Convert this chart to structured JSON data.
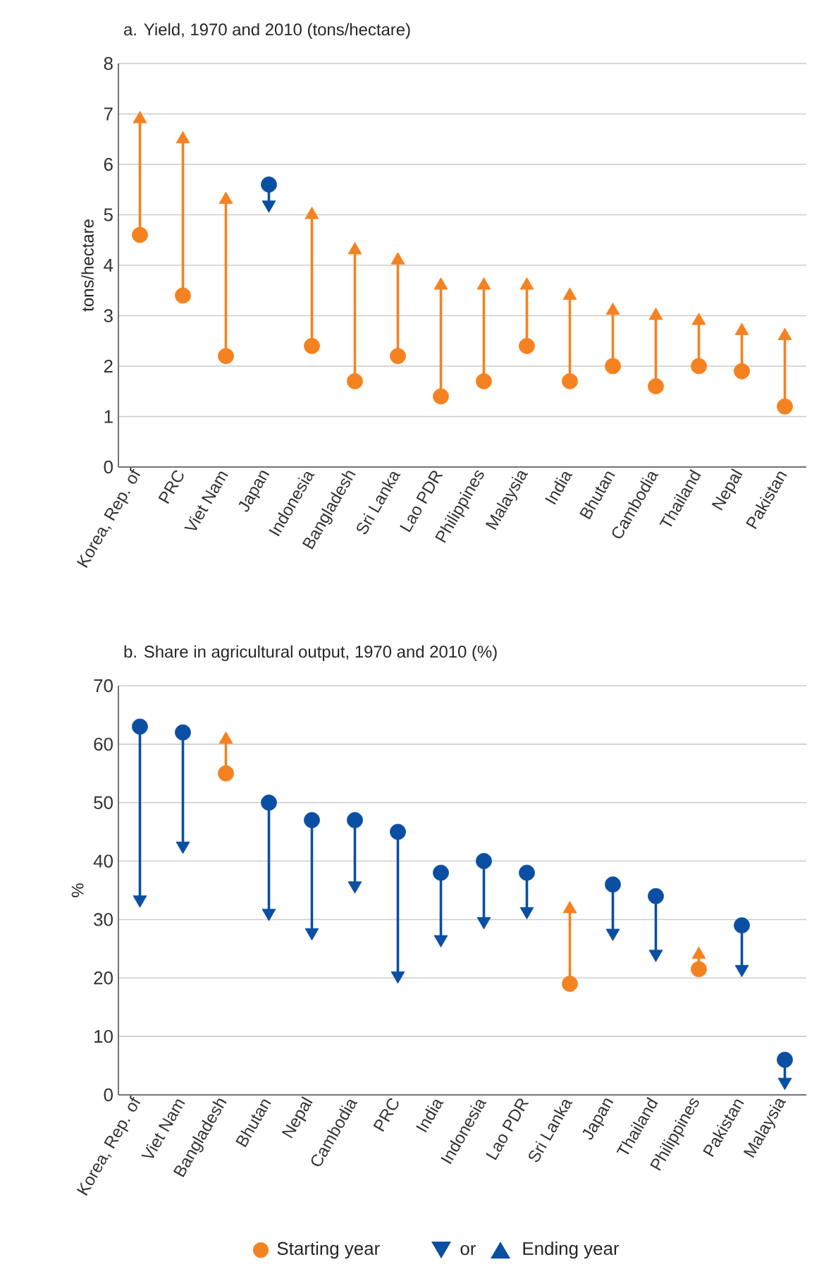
{
  "chart_data": [
    {
      "type": "scatter",
      "title": "a. Yield, 1970 and 2010 (tons/hectare)",
      "ylabel": "tons/hectare",
      "categories": [
        "Korea, Rep. of",
        "PRC",
        "Viet Nam",
        "Japan",
        "Indonesia",
        "Bangladesh",
        "Sri Lanka",
        "Lao PDR",
        "Philippines",
        "Malaysia",
        "India",
        "Bhutan",
        "Cambodia",
        "Thailand",
        "Nepal",
        "Pakistan"
      ],
      "ylim": [
        0,
        8
      ],
      "yticks": [
        0,
        1,
        2,
        3,
        4,
        5,
        6,
        7,
        8
      ],
      "grid": "y",
      "legend": false,
      "series": [
        {
          "color": "#f58220",
          "marker": "circle",
          "colors": [
            "#f58220",
            "#f58220",
            "#f58220",
            "#0a4fa3",
            "#f58220",
            "#f58220",
            "#f58220",
            "#f58220",
            "#f58220",
            "#f58220",
            "#f58220",
            "#f58220",
            "#f58220",
            "#f58220",
            "#f58220",
            "#f58220"
          ],
          "values": [
            4.6,
            3.4,
            2.2,
            5.6,
            2.4,
            1.7,
            2.2,
            1.4,
            1.7,
            2.4,
            1.7,
            2.0,
            1.6,
            2.0,
            1.9,
            1.2
          ]
        },
        {
          "color": "#0a4fa3",
          "marker": "triangle",
          "colors": [
            "#f58220",
            "#f58220",
            "#f58220",
            "#0a4fa3",
            "#f58220",
            "#f58220",
            "#f58220",
            "#f58220",
            "#f58220",
            "#f58220",
            "#f58220",
            "#f58220",
            "#f58220",
            "#f58220",
            "#f58220",
            "#f58220"
          ],
          "values": [
            6.9,
            6.5,
            5.3,
            5.2,
            5.0,
            4.3,
            4.1,
            3.6,
            3.6,
            3.6,
            3.4,
            3.1,
            3.0,
            2.9,
            2.7,
            2.6
          ]
        }
      ]
    },
    {
      "type": "scatter",
      "title": "b. Share in agricultural output, 1970 and 2010 (%)",
      "ylabel": "%",
      "categories": [
        "Korea, Rep. of",
        "Viet Nam",
        "Bangladesh",
        "Bhutan",
        "Nepal",
        "Cambodia",
        "PRC",
        "India",
        "Indonesia",
        "Lao PDR",
        "Sri Lanka",
        "Japan",
        "Thailand",
        "Philippines",
        "Pakistan",
        "Malaysia"
      ],
      "ylim": [
        0,
        70
      ],
      "yticks": [
        0,
        10,
        20,
        30,
        40,
        50,
        60,
        70
      ],
      "grid": "y",
      "legend": "bottom",
      "annotations": [
        "or"
      ],
      "series": [
        {
          "name": "Starting year",
          "color": "#f58220",
          "marker": "circle",
          "colors": [
            "#0a4fa3",
            "#0a4fa3",
            "#f58220",
            "#0a4fa3",
            "#0a4fa3",
            "#0a4fa3",
            "#0a4fa3",
            "#0a4fa3",
            "#0a4fa3",
            "#0a4fa3",
            "#f58220",
            "#0a4fa3",
            "#0a4fa3",
            "#f58220",
            "#0a4fa3",
            "#0a4fa3"
          ],
          "values": [
            63,
            62,
            55,
            50,
            47,
            47,
            45,
            38,
            40,
            38,
            19,
            36,
            34,
            21.5,
            29,
            6
          ]
        },
        {
          "name": "Ending year",
          "color": "#0a4fa3",
          "marker": "triangle",
          "colors": [
            "#0a4fa3",
            "#0a4fa3",
            "#f58220",
            "#0a4fa3",
            "#0a4fa3",
            "#0a4fa3",
            "#0a4fa3",
            "#0a4fa3",
            "#0a4fa3",
            "#0a4fa3",
            "#f58220",
            "#0a4fa3",
            "#0a4fa3",
            "#f58220",
            "#0a4fa3",
            "#0a4fa3"
          ],
          "values": [
            33.4,
            42.6,
            60.8,
            31.1,
            27.8,
            35.8,
            20.4,
            26.6,
            29.7,
            31.4,
            31.8,
            27.7,
            24.1,
            24.0,
            21.5,
            2.2
          ]
        }
      ]
    }
  ]
}
